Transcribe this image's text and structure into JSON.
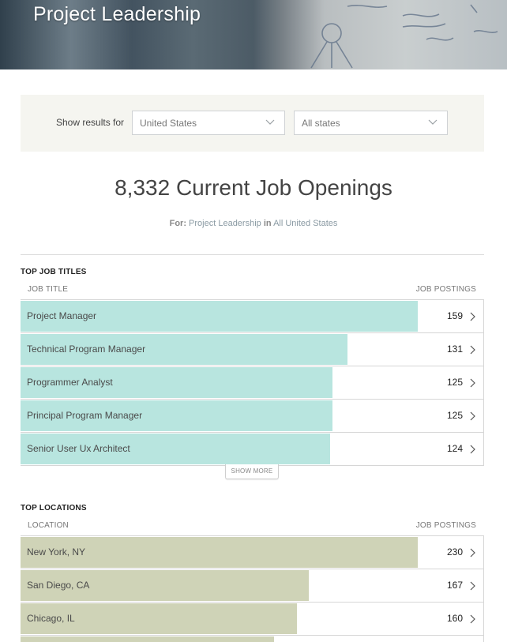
{
  "hero": {
    "title": "Project Leadership"
  },
  "filters": {
    "label": "Show results for",
    "country": "United States",
    "state": "All states"
  },
  "summary": {
    "count_heading": "8,332 Current Job Openings",
    "for_label": "For:",
    "for_category": "Project Leadership",
    "for_in": "in",
    "for_location": "All United States"
  },
  "top_job_titles": {
    "title": "Top Job Titles",
    "col_left": "Job Title",
    "col_right": "Job Postings",
    "max": 159,
    "bar_color": "#b8e5df",
    "rows": [
      {
        "label": "Project Manager",
        "value": 159
      },
      {
        "label": "Technical Program Manager",
        "value": 131
      },
      {
        "label": "Programmer Analyst",
        "value": 125
      },
      {
        "label": "Principal Program Manager",
        "value": 125
      },
      {
        "label": "Senior User Ux Architect",
        "value": 124
      }
    ],
    "show_more": "Show More"
  },
  "top_locations": {
    "title": "Top Locations",
    "col_left": "Location",
    "col_right": "Job Postings",
    "max": 230,
    "bar_color": "#cfd3b7",
    "rows": [
      {
        "label": "New York, NY",
        "value": 230
      },
      {
        "label": "San Diego, CA",
        "value": 167
      },
      {
        "label": "Chicago, IL",
        "value": 160
      },
      {
        "label": "",
        "value": 147
      }
    ]
  }
}
